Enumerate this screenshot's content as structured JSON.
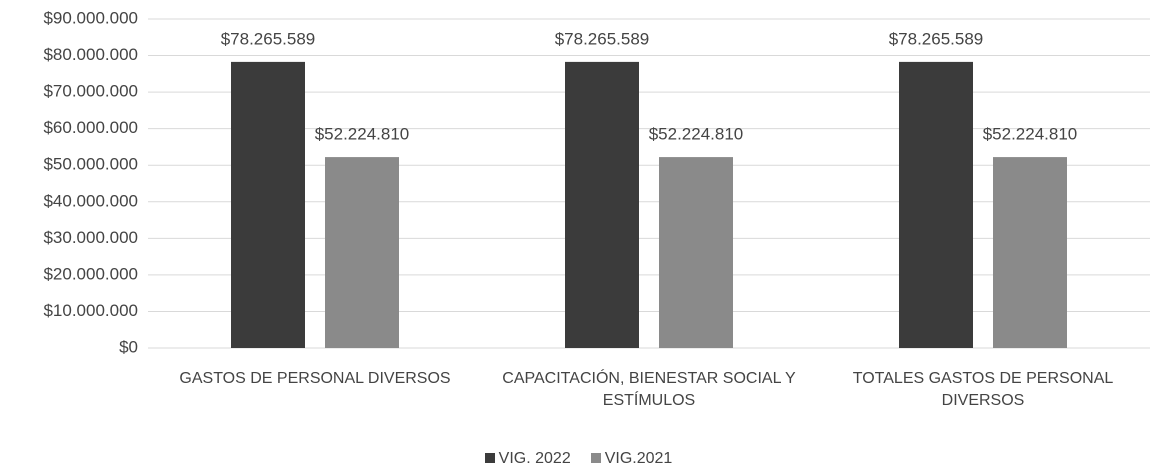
{
  "chart_data": {
    "type": "bar",
    "categories": [
      "GASTOS DE PERSONAL DIVERSOS",
      "CAPACITACIÓN, BIENESTAR SOCIAL Y ESTÍMULOS",
      "TOTALES GASTOS DE PERSONAL DIVERSOS"
    ],
    "series": [
      {
        "name": "VIG. 2022",
        "color": "#3b3b3b",
        "values": [
          78265589,
          78265589,
          78265589
        ],
        "value_labels": [
          "$78.265.589",
          "$78.265.589",
          "$78.265.589"
        ]
      },
      {
        "name": "VIG.2021",
        "color": "#8a8a8a",
        "values": [
          52224810,
          52224810,
          52224810
        ],
        "value_labels": [
          "$52.224.810",
          "$52.224.810",
          "$52.224.810"
        ]
      }
    ],
    "ylim": [
      0,
      90000000
    ],
    "yticks": [
      {
        "value": 0,
        "label": "$0"
      },
      {
        "value": 10000000,
        "label": "$10.000.000"
      },
      {
        "value": 20000000,
        "label": "$20.000.000"
      },
      {
        "value": 30000000,
        "label": "$30.000.000"
      },
      {
        "value": 40000000,
        "label": "$40.000.000"
      },
      {
        "value": 50000000,
        "label": "$50.000.000"
      },
      {
        "value": 60000000,
        "label": "$60.000.000"
      },
      {
        "value": 70000000,
        "label": "$70.000.000"
      },
      {
        "value": 80000000,
        "label": "$80.000.000"
      },
      {
        "value": 90000000,
        "label": "$90.000.000"
      }
    ],
    "grid": true,
    "legend": "bottom"
  }
}
